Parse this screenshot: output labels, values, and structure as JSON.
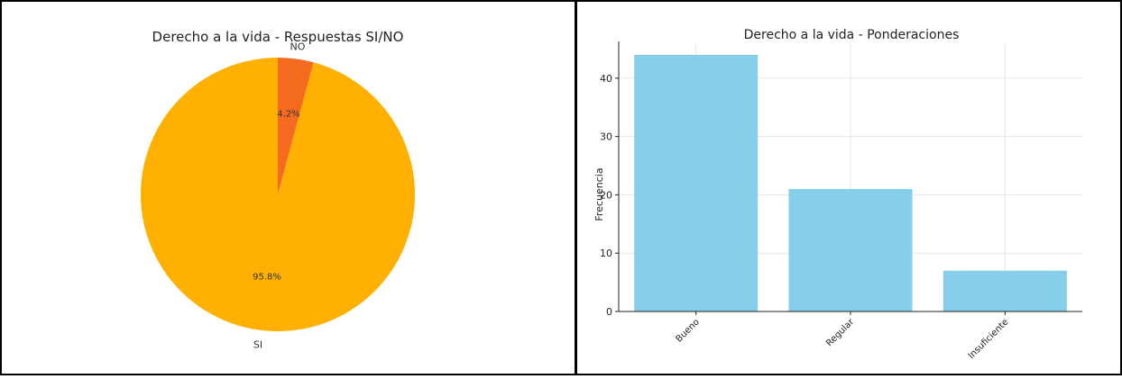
{
  "chart_data": [
    {
      "type": "pie",
      "title": "Derecho a la vida - Respuestas SI/NO",
      "labels": [
        "SI",
        "NO"
      ],
      "values": [
        95.8,
        4.2
      ],
      "pct_labels": [
        "95.8%",
        "4.2%"
      ],
      "colors": [
        "#FFB000",
        "#F46B20"
      ]
    },
    {
      "type": "bar",
      "title": "Derecho a la vida - Ponderaciones",
      "categories": [
        "Bueno",
        "Regular",
        "Insuficiente"
      ],
      "values": [
        44,
        21,
        7
      ],
      "ylabel": "Frecuencia",
      "xlabel": "",
      "ylim": [
        0,
        46
      ],
      "yticks": [
        0,
        10,
        20,
        30,
        40
      ],
      "grid": true,
      "color": "#87CEEB"
    }
  ]
}
